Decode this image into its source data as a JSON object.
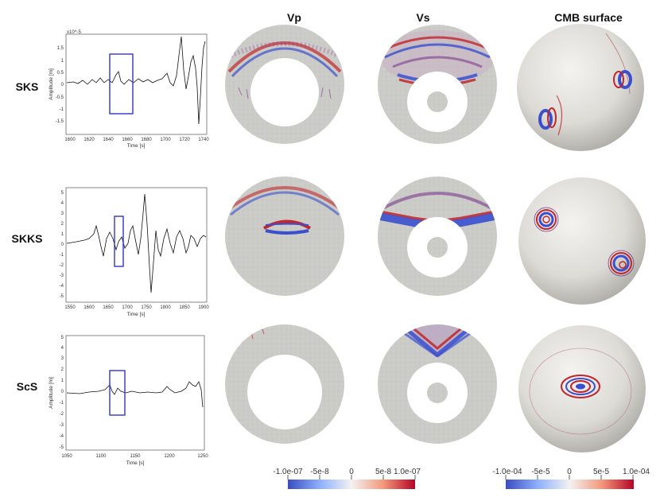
{
  "column_titles": {
    "vp": "Vp",
    "vs": "Vs",
    "cmb": "CMB surface"
  },
  "rows": [
    {
      "label": "SKS",
      "seismogram": {
        "ylabel": "Amplitude [m]",
        "xlabel": "Time [s]",
        "scale_note": "x10^-5",
        "xticks": [
          "1600",
          "1620",
          "1640",
          "1660",
          "1680",
          "1700",
          "1720",
          "1740"
        ],
        "yticks": [
          "1.5",
          "1",
          "0.5",
          "0",
          "-0.5",
          "-1",
          "-1.5"
        ],
        "box_color": "#3333cc"
      }
    },
    {
      "label": "SKKS",
      "seismogram": {
        "ylabel": "",
        "xlabel": "Time [s]",
        "xticks": [
          "1550",
          "1600",
          "1650",
          "1700",
          "1750",
          "1800",
          "1850",
          "1900"
        ],
        "yticks": [
          "5",
          "4",
          "3",
          "2",
          "1",
          "0",
          "-1",
          "-2",
          "-3",
          "-4",
          "-5"
        ],
        "box_color": "#3333cc"
      }
    },
    {
      "label": "ScS",
      "seismogram": {
        "ylabel": "Amplitude [m]",
        "xlabel": "Time [s]",
        "xticks": [
          "1050",
          "1100",
          "1150",
          "1200",
          "1250"
        ],
        "yticks": [
          "5",
          "4",
          "3",
          "2",
          "1",
          "0",
          "-1",
          "-2",
          "-3",
          "-4",
          "-5"
        ],
        "box_color": "#3333cc"
      }
    }
  ],
  "colorbars": [
    {
      "ticks": [
        "-1.0e-07",
        "-5e-8",
        "0",
        "5e-8",
        "1.0e-07"
      ]
    },
    {
      "ticks": [
        "-1.0e-04",
        "-5e-5",
        "0",
        "5e-5",
        "1.0e-04"
      ]
    }
  ],
  "colors": {
    "disk_fill": "#c9c9c6",
    "negative": "#3a4fcf",
    "positive": "#c0262b",
    "trace": "#111111"
  }
}
